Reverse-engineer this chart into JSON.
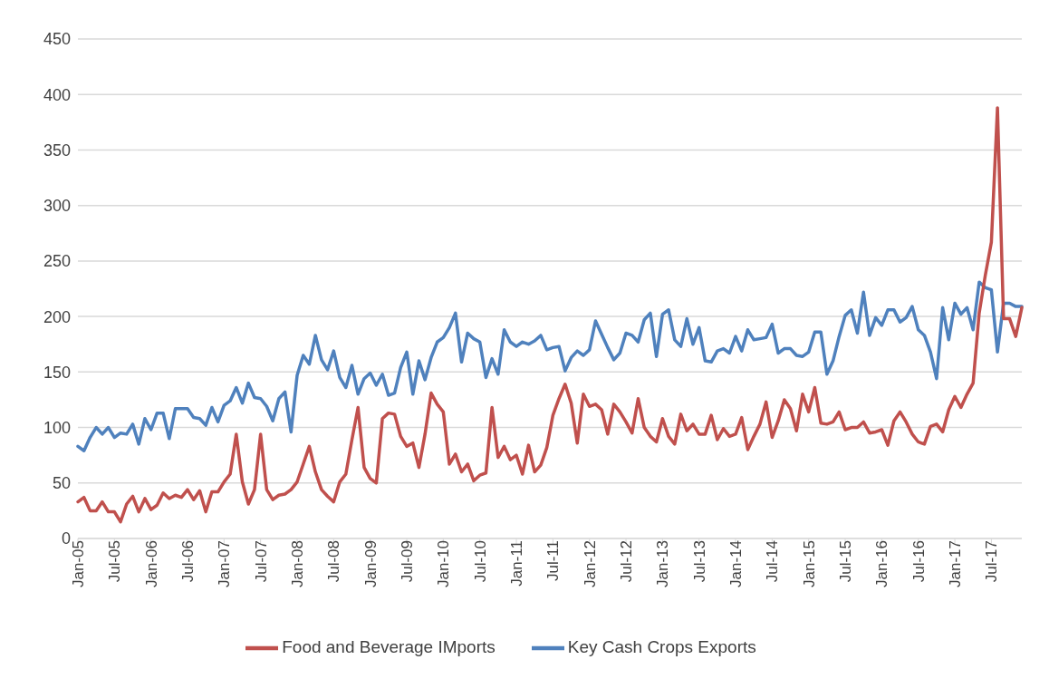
{
  "chart_data": {
    "type": "line",
    "categories": [
      "Jan-05",
      null,
      null,
      null,
      null,
      null,
      "Jul-05",
      null,
      null,
      null,
      null,
      null,
      "Jan-06",
      null,
      null,
      null,
      null,
      null,
      "Jul-06",
      null,
      null,
      null,
      null,
      null,
      "Jan-07",
      null,
      null,
      null,
      null,
      null,
      "Jul-07",
      null,
      null,
      null,
      null,
      null,
      "Jan-08",
      null,
      null,
      null,
      null,
      null,
      "Jul-08",
      null,
      null,
      null,
      null,
      null,
      "Jan-09",
      null,
      null,
      null,
      null,
      null,
      "Jul-09",
      null,
      null,
      null,
      null,
      null,
      "Jan-10",
      null,
      null,
      null,
      null,
      null,
      "Jul-10",
      null,
      null,
      null,
      null,
      null,
      "Jan-11",
      null,
      null,
      null,
      null,
      null,
      "Jul-11",
      null,
      null,
      null,
      null,
      null,
      "Jan-12",
      null,
      null,
      null,
      null,
      null,
      "Jul-12",
      null,
      null,
      null,
      null,
      null,
      "Jan-13",
      null,
      null,
      null,
      null,
      null,
      "Jul-13",
      null,
      null,
      null,
      null,
      null,
      "Jan-14",
      null,
      null,
      null,
      null,
      null,
      "Jul-14",
      null,
      null,
      null,
      null,
      null,
      "Jan-15",
      null,
      null,
      null,
      null,
      null,
      "Jul-15",
      null,
      null,
      null,
      null,
      null,
      "Jan-16",
      null,
      null,
      null,
      null,
      null,
      "Jul-16",
      null,
      null,
      null,
      null,
      null,
      "Jan-17",
      null,
      null,
      null,
      null,
      null,
      "Jul-17",
      null,
      null,
      null,
      null,
      null
    ],
    "series": [
      {
        "name": "Key Cash Crops Exports",
        "color": "#4f81bd",
        "values": [
          83,
          79,
          91,
          100,
          94,
          100,
          91,
          95,
          94,
          103,
          85,
          108,
          98,
          113,
          113,
          90,
          117,
          117,
          117,
          109,
          108,
          102,
          118,
          105,
          120,
          124,
          136,
          122,
          140,
          127,
          126,
          119,
          106,
          126,
          132,
          96,
          147,
          165,
          157,
          183,
          161,
          152,
          169,
          145,
          136,
          156,
          130,
          144,
          149,
          138,
          148,
          129,
          131,
          154,
          168,
          130,
          160,
          143,
          163,
          177,
          181,
          190,
          203,
          159,
          185,
          180,
          177,
          145,
          162,
          148,
          188,
          177,
          173,
          177,
          175,
          178,
          183,
          170,
          172,
          173,
          151,
          163,
          169,
          165,
          170,
          196,
          184,
          172,
          161,
          167,
          185,
          183,
          177,
          197,
          203,
          164,
          202,
          206,
          179,
          173,
          198,
          175,
          190,
          160,
          159,
          169,
          171,
          167,
          182,
          169,
          188,
          179,
          180,
          181,
          193,
          167,
          171,
          171,
          165,
          164,
          168,
          186,
          186,
          148,
          160,
          182,
          201,
          206,
          185,
          222,
          183,
          199,
          192,
          206,
          206,
          195,
          199,
          209,
          188,
          183,
          168,
          144,
          208,
          179,
          212,
          202,
          208,
          188,
          231,
          226,
          224,
          168,
          212,
          212,
          209,
          209
        ]
      },
      {
        "name": "Food and Beverage IMports",
        "color": "#c0504d",
        "values": [
          33,
          37,
          25,
          25,
          33,
          24,
          24,
          15,
          31,
          38,
          24,
          36,
          26,
          30,
          41,
          36,
          39,
          37,
          44,
          35,
          43,
          24,
          42,
          42,
          51,
          58,
          94,
          51,
          31,
          44,
          94,
          44,
          35,
          39,
          40,
          44,
          51,
          67,
          83,
          60,
          44,
          38,
          33,
          51,
          58,
          89,
          118,
          64,
          54,
          50,
          108,
          113,
          112,
          92,
          83,
          86,
          64,
          94,
          131,
          121,
          114,
          67,
          76,
          60,
          67,
          52,
          57,
          59,
          118,
          73,
          83,
          71,
          75,
          58,
          84,
          60,
          66,
          82,
          111,
          126,
          139,
          122,
          86,
          130,
          119,
          121,
          116,
          94,
          121,
          114,
          105,
          95,
          126,
          100,
          92,
          87,
          108,
          92,
          85,
          112,
          97,
          103,
          94,
          94,
          111,
          89,
          99,
          92,
          94,
          109,
          80,
          92,
          103,
          123,
          91,
          106,
          125,
          117,
          97,
          130,
          114,
          136,
          104,
          103,
          105,
          114,
          98,
          100,
          100,
          105,
          95,
          96,
          98,
          84,
          106,
          114,
          105,
          94,
          87,
          85,
          101,
          103,
          96,
          116,
          128,
          118,
          130,
          140,
          203,
          237,
          267,
          388,
          198,
          198,
          182,
          208
        ]
      }
    ],
    "ylim": [
      0,
      450
    ],
    "yticks": [
      0,
      50,
      100,
      150,
      200,
      250,
      300,
      350,
      400,
      450
    ],
    "grid": "y",
    "legend": "bottom",
    "marker": "none",
    "line_style": "solid"
  }
}
